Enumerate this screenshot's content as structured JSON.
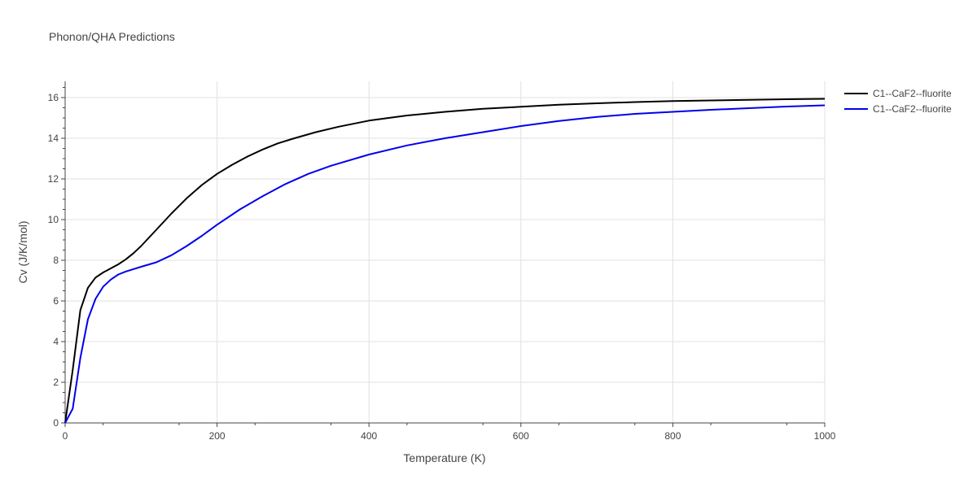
{
  "chart_data": {
    "type": "line",
    "title": "Phonon/QHA Predictions",
    "xlabel": "Temperature (K)",
    "ylabel": "Cv (J/K/mol)",
    "xlim": [
      0,
      1000
    ],
    "ylim": [
      0,
      16.8
    ],
    "xticks": [
      0,
      200,
      400,
      600,
      800,
      1000
    ],
    "yticks": [
      0,
      2,
      4,
      6,
      8,
      10,
      12,
      14,
      16
    ],
    "xtick_labels": [
      "0",
      "200",
      "400",
      "600",
      "800",
      "1000"
    ],
    "ytick_labels": [
      "0",
      "2",
      "4",
      "6",
      "8",
      "10",
      "12",
      "14",
      "16"
    ],
    "grid": true,
    "legend_position": "top-right outside",
    "series": [
      {
        "name": "C1--CaF2--fluorite",
        "color": "#000000",
        "x": [
          0,
          10,
          20,
          30,
          40,
          50,
          60,
          70,
          80,
          90,
          100,
          120,
          140,
          160,
          180,
          200,
          220,
          240,
          260,
          280,
          300,
          330,
          360,
          400,
          450,
          500,
          550,
          600,
          650,
          700,
          750,
          800,
          850,
          900,
          950,
          1000
        ],
        "y": [
          0,
          2.6,
          5.55,
          6.65,
          7.15,
          7.4,
          7.6,
          7.8,
          8.05,
          8.35,
          8.7,
          9.5,
          10.3,
          11.05,
          11.7,
          12.25,
          12.7,
          13.1,
          13.45,
          13.75,
          13.98,
          14.3,
          14.57,
          14.87,
          15.12,
          15.3,
          15.45,
          15.55,
          15.65,
          15.72,
          15.78,
          15.83,
          15.86,
          15.89,
          15.92,
          15.94
        ]
      },
      {
        "name": "C1--CaF2--fluorite",
        "color": "#0000ee",
        "x": [
          0,
          10,
          20,
          30,
          40,
          50,
          60,
          70,
          80,
          100,
          120,
          140,
          160,
          180,
          200,
          230,
          260,
          290,
          320,
          350,
          400,
          450,
          500,
          550,
          600,
          650,
          700,
          750,
          800,
          850,
          900,
          950,
          1000
        ],
        "y": [
          0,
          0.7,
          3.2,
          5.1,
          6.1,
          6.7,
          7.05,
          7.3,
          7.45,
          7.68,
          7.9,
          8.25,
          8.7,
          9.2,
          9.75,
          10.5,
          11.15,
          11.75,
          12.25,
          12.65,
          13.2,
          13.65,
          14.0,
          14.3,
          14.6,
          14.85,
          15.05,
          15.2,
          15.3,
          15.4,
          15.48,
          15.56,
          15.62
        ]
      }
    ]
  }
}
